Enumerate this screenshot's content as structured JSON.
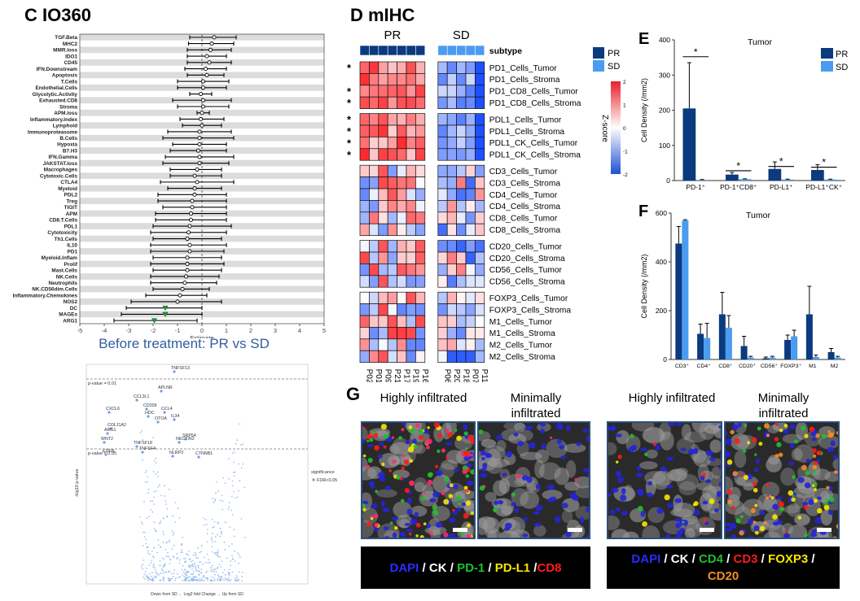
{
  "panel_c": {
    "title": "C IO360",
    "subtitle": "Before treatment: PR vs SD",
    "xlabel": "Estimate",
    "xticks": [
      "-5",
      "-4",
      "-3",
      "-2",
      "-1",
      "0",
      "1",
      "2",
      "3",
      "4",
      "5"
    ]
  },
  "panel_volcano": {
    "labels": [
      "TNFSF13",
      "APLNR",
      "CCL3L1",
      "CXCL6",
      "CD209",
      "CCL4",
      "HDC",
      "OTOA",
      "IL34",
      "COL11A2",
      "ARG1",
      "SRP54",
      "NECTIN2",
      "WNT2",
      "TNFSF18",
      "TNFSF4",
      "EDEB",
      "NLRP3",
      "CTNNB1"
    ],
    "pvalue_high": "p-value = 0.01",
    "pvalue_low": "p-value = 0.05",
    "ylabel": "-log10 p-value",
    "xlabel": "Down from SD ← Log2 fold Change → Up from SD",
    "legend_title": "significance",
    "legend_item": "FDR<0.05"
  },
  "panel_d": {
    "title": "D mIHC",
    "group_pr": "PR",
    "group_sd": "SD",
    "subtype_label": "subtype",
    "legend_pr": "PR",
    "legend_sd": "SD",
    "zscore_label": "Z-score",
    "zscore_ticks": [
      "2",
      "1",
      "0",
      "-1",
      "-2"
    ],
    "samples": [
      "P02",
      "P01",
      "P09",
      "P21",
      "P17",
      "P19",
      "P16",
      "P06",
      "P20",
      "P18",
      "P07",
      "P11"
    ],
    "rows": [
      "PD1_Cells_Tumor",
      "PD1_Cells_Stroma",
      "PD1_CD8_Cells_Tumor",
      "PD1_CD8_Cells_Stroma",
      "PDL1_Cells_Tumor",
      "PDL1_Cells_Stroma",
      "PDL1_CK_Cells_Tumor",
      "PDL1_CK_Cells_Stroma",
      "CD3_Cells_Tumor",
      "CD3_Cells_Stroma",
      "CD4_Cells_Tumor",
      "CD4_Cells_Stroma",
      "CD8_Cells_Tumor",
      "CD8_Cells_Stroma",
      "CD20_Cells_Tumor",
      "CD20_Cells_Stroma",
      "CD56_Cells_Tumor",
      "CD56_Cells_Stroma",
      "FOXP3_Cells_Tumor",
      "FOXP3_Cells_Stroma",
      "M1_Cells_Tumor",
      "M1_Cells_Stroma",
      "M2_Cells_Tumor",
      "M2_Cells_Stroma"
    ],
    "star": "*"
  },
  "panel_e": {
    "letter": "E",
    "title": "Tumor",
    "ylabel": "Cell Density (/mm2)",
    "yticks": [
      "0",
      "100",
      "200",
      "300",
      "400"
    ],
    "legend": [
      "PR",
      "SD"
    ],
    "sig": "*"
  },
  "panel_f": {
    "letter": "F",
    "title": "Tumor",
    "ylabel": "Cell Density (/mm2)",
    "yticks": [
      "0",
      "200",
      "400",
      "600"
    ]
  },
  "panel_g": {
    "letter": "G",
    "headers": [
      "Highly infiltrated",
      "Minimally infiltrated",
      "Highly infiltrated",
      "Minimally infiltrated"
    ],
    "legend1": [
      {
        "text": "DAPI",
        "color": "#2b2bff"
      },
      {
        "text": " / ",
        "color": "#ffffff"
      },
      {
        "text": "CK",
        "color": "#ffffff"
      },
      {
        "text": " / ",
        "color": "#ffffff"
      },
      {
        "text": "PD-1",
        "color": "#1fbf2f"
      },
      {
        "text": " / ",
        "color": "#ffffff"
      },
      {
        "text": "PD-L1",
        "color": "#f5e800"
      },
      {
        "text": " /",
        "color": "#ffffff"
      },
      {
        "text": "CD8",
        "color": "#ff1a1a"
      }
    ],
    "legend2_line1": [
      {
        "text": "DAPI",
        "color": "#2b2bff"
      },
      {
        "text": " / ",
        "color": "#ffffff"
      },
      {
        "text": "CK",
        "color": "#ffffff"
      },
      {
        "text": " / ",
        "color": "#ffffff"
      },
      {
        "text": "CD4",
        "color": "#1fbf2f"
      },
      {
        "text": " / ",
        "color": "#ffffff"
      },
      {
        "text": "CD3",
        "color": "#ff1a1a"
      },
      {
        "text": " / ",
        "color": "#ffffff"
      },
      {
        "text": "FOXP3",
        "color": "#f5e800"
      },
      {
        "text": " /",
        "color": "#ffffff"
      }
    ],
    "legend2_line2": [
      {
        "text": "CD20",
        "color": "#f28c28"
      }
    ]
  },
  "chart_data": [
    {
      "type": "scatter",
      "title": "C IO360",
      "subtitle": "Before treatment: PR vs SD",
      "xlabel": "Estimate",
      "xlim": [
        -5,
        5
      ],
      "categories": [
        "TGF.Beta",
        "MHC2",
        "MMR.loss",
        "IDO1",
        "CD45",
        "IFN.Downstream",
        "Apoptosis",
        "T.Cells",
        "Endothelial.Cells",
        "Glycolytic.Activity",
        "Exhausted.CD8",
        "Stroma",
        "APM.loss",
        "Inflammatory.Index",
        "Lymphoid",
        "Immunoproteasome",
        "B.Cells",
        "Hypoxia",
        "B7.H3",
        "IFN.Gamma",
        "JAKSTAT.loss",
        "Macrophages",
        "Cytotoxic.Cells",
        "CTLA4",
        "Myeloid",
        "PDL2",
        "Treg",
        "TIGIT",
        "APM",
        "CD8.T.Cells",
        "PDL1",
        "Cytotoxicity",
        "Th1.Cells",
        "IL10",
        "PD1",
        "Myeloid.Inflam",
        "Prolif",
        "Mast.Cells",
        "NK.Cells",
        "Neutrophils",
        "NK.CD56dim.Cells",
        "Inflammatory.Chemokines",
        "NOS2",
        "DC",
        "MAGEs",
        "ARG1"
      ],
      "series": [
        {
          "values": [
            0.5,
            0.4,
            0.35,
            0.2,
            0.3,
            0.15,
            0.2,
            0.05,
            0.05,
            -0.05,
            0.05,
            0.05,
            0.0,
            -0.05,
            0.0,
            -0.1,
            -0.1,
            -0.1,
            -0.15,
            -0.1,
            -0.1,
            -0.2,
            -0.3,
            -0.2,
            -0.3,
            -0.3,
            -0.4,
            -0.4,
            -0.45,
            -0.45,
            -0.5,
            -0.55,
            -0.6,
            -0.5,
            -0.5,
            -0.6,
            -0.6,
            -0.6,
            -0.65,
            -0.7,
            -0.8,
            -0.9,
            -1.0,
            -1.5,
            -1.5,
            -1.95
          ],
          "lower": [
            -0.5,
            -0.55,
            -0.6,
            -0.6,
            -0.6,
            -0.7,
            -0.6,
            -1.0,
            -1.0,
            -0.5,
            -1.2,
            -1.0,
            -0.2,
            -0.9,
            -0.8,
            -1.4,
            -1.6,
            -1.2,
            -1.3,
            -1.5,
            -1.6,
            -1.3,
            -1.3,
            -1.7,
            -1.4,
            -1.8,
            -1.8,
            -1.6,
            -1.9,
            -1.9,
            -2.0,
            -2.1,
            -2.0,
            -2.1,
            -2.1,
            -2.0,
            -2.1,
            -2.0,
            -2.1,
            -2.1,
            -2.0,
            -2.3,
            -2.9,
            -3.1,
            -3.3,
            -3.6
          ],
          "upper": [
            1.4,
            1.3,
            1.2,
            1.0,
            1.2,
            1.0,
            0.9,
            1.1,
            1.0,
            0.4,
            1.2,
            1.1,
            0.3,
            0.9,
            0.8,
            1.2,
            1.3,
            1.0,
            1.0,
            1.3,
            1.1,
            0.8,
            0.8,
            1.3,
            0.8,
            1.0,
            1.0,
            1.0,
            1.0,
            1.0,
            1.2,
            1.0,
            0.8,
            1.0,
            0.9,
            0.8,
            0.9,
            0.8,
            0.7,
            0.6,
            0.3,
            0.2,
            0.8,
            0.0,
            0.0,
            -0.2
          ],
          "significant": [
            false,
            false,
            false,
            false,
            false,
            false,
            false,
            false,
            false,
            false,
            false,
            false,
            false,
            false,
            false,
            false,
            false,
            false,
            false,
            false,
            false,
            false,
            false,
            false,
            false,
            false,
            false,
            false,
            false,
            false,
            false,
            false,
            false,
            false,
            false,
            false,
            false,
            false,
            false,
            false,
            false,
            false,
            false,
            true,
            true,
            true
          ]
        }
      ]
    },
    {
      "type": "bar",
      "title": "Tumor",
      "ylabel": "Cell Density (/mm2)",
      "ylim": [
        0,
        400
      ],
      "categories": [
        "PD-1⁺",
        "PD-1⁺CD8⁺",
        "PD-L1⁺",
        "PD-L1⁺CK⁺"
      ],
      "series": [
        {
          "name": "PR",
          "values": [
            205,
            17,
            33,
            30
          ],
          "errors": [
            130,
            6,
            20,
            15
          ]
        },
        {
          "name": "SD",
          "values": [
            2,
            4,
            3,
            3
          ],
          "errors": [
            1,
            1,
            1,
            1
          ]
        }
      ],
      "legend": "top-right"
    },
    {
      "type": "bar",
      "title": "Tumor",
      "ylabel": "Cell Density (/mm2)",
      "ylim": [
        0,
        600
      ],
      "categories": [
        "CD3⁺",
        "CD4⁺",
        "CD8⁺",
        "CD20⁺",
        "CD56⁺",
        "FOXP3⁺",
        "M1",
        "M2"
      ],
      "series": [
        {
          "name": "PR",
          "values": [
            475,
            105,
            185,
            55,
            5,
            80,
            185,
            30
          ],
          "errors": [
            70,
            40,
            90,
            40,
            5,
            20,
            115,
            15
          ]
        },
        {
          "name": "SD",
          "values": [
            570,
            88,
            130,
            8,
            8,
            95,
            10,
            8
          ],
          "errors": [
            3,
            60,
            50,
            5,
            5,
            25,
            8,
            5
          ]
        }
      ]
    }
  ]
}
